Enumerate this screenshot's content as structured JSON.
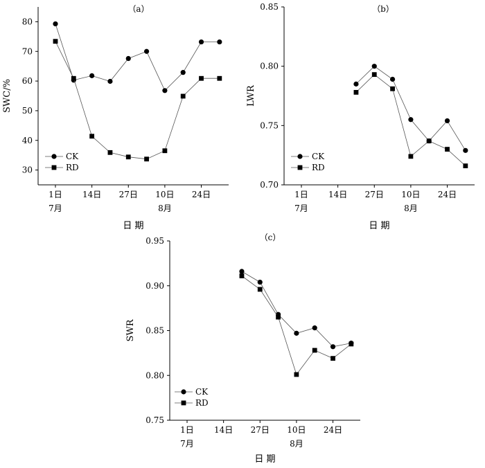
{
  "chart_data": [
    {
      "id": "a",
      "type": "line",
      "title": "（a）",
      "ylabel": "SWC/%",
      "xlabel": "日 期",
      "ylim": [
        25,
        85
      ],
      "yticks": [
        "30",
        "40",
        "50",
        "60",
        "70",
        "80"
      ],
      "yticks_values": [
        30,
        40,
        50,
        60,
        70,
        80
      ],
      "xlim": [
        0,
        9.5
      ],
      "xticks": [
        {
          "x": 0,
          "label": "1日",
          "sub": "7月"
        },
        {
          "x": 2,
          "label": "14日",
          "sub": ""
        },
        {
          "x": 4,
          "label": "27日",
          "sub": ""
        },
        {
          "x": 6,
          "label": "10日",
          "sub": "8月"
        },
        {
          "x": 8,
          "label": "24日",
          "sub": ""
        }
      ],
      "legend": "bottom-left",
      "series": [
        {
          "name": "CK",
          "marker": "circle",
          "x": [
            0,
            1,
            2,
            3,
            4,
            5,
            6,
            7,
            8,
            9
          ],
          "y": [
            79.3,
            60.3,
            61.8,
            59.9,
            67.6,
            70.0,
            56.8,
            62.9,
            73.2,
            73.2
          ]
        },
        {
          "name": "RD",
          "marker": "square",
          "x": [
            0,
            1,
            2,
            3,
            4,
            5,
            6,
            7,
            8,
            9
          ],
          "y": [
            73.4,
            60.9,
            41.4,
            35.9,
            34.4,
            33.7,
            36.5,
            54.9,
            60.9,
            60.9
          ]
        }
      ]
    },
    {
      "id": "b",
      "type": "line",
      "title": "（b）",
      "ylabel": "LWR",
      "xlabel": "日 期",
      "ylim": [
        0.7,
        0.85
      ],
      "yticks": [
        "0.70",
        "0.75",
        "0.80",
        "0.85"
      ],
      "yticks_values": [
        0.7,
        0.75,
        0.8,
        0.85
      ],
      "xlim": [
        0,
        9.5
      ],
      "xticks": [
        {
          "x": 0,
          "label": "1日",
          "sub": "7月"
        },
        {
          "x": 2,
          "label": "14日",
          "sub": ""
        },
        {
          "x": 4,
          "label": "27日",
          "sub": ""
        },
        {
          "x": 6,
          "label": "10日",
          "sub": "8月"
        },
        {
          "x": 8,
          "label": "24日",
          "sub": ""
        }
      ],
      "legend": "bottom-left",
      "series": [
        {
          "name": "CK",
          "marker": "circle",
          "x": [
            3,
            4,
            5,
            6,
            7,
            8,
            9
          ],
          "y": [
            0.785,
            0.8,
            0.789,
            0.755,
            0.737,
            0.754,
            0.729
          ]
        },
        {
          "name": "RD",
          "marker": "square",
          "x": [
            3,
            4,
            5,
            6,
            7,
            8,
            9
          ],
          "y": [
            0.778,
            0.793,
            0.781,
            0.724,
            0.737,
            0.73,
            0.716
          ]
        }
      ]
    },
    {
      "id": "c",
      "type": "line",
      "title": "（c）",
      "ylabel": "SWR",
      "xlabel": "日 期",
      "ylim": [
        0.75,
        0.95
      ],
      "yticks": [
        "0.75",
        "0.80",
        "0.85",
        "0.90",
        "0.95"
      ],
      "yticks_values": [
        0.75,
        0.8,
        0.85,
        0.9,
        0.95
      ],
      "xlim": [
        0,
        9.5
      ],
      "xticks": [
        {
          "x": 0,
          "label": "1日",
          "sub": "7月"
        },
        {
          "x": 2,
          "label": "14日",
          "sub": ""
        },
        {
          "x": 4,
          "label": "27日",
          "sub": ""
        },
        {
          "x": 6,
          "label": "10日",
          "sub": "8月"
        },
        {
          "x": 8,
          "label": "24日",
          "sub": ""
        }
      ],
      "legend": "bottom-left",
      "series": [
        {
          "name": "CK",
          "marker": "circle",
          "x": [
            3,
            4,
            5,
            6,
            7,
            8,
            9
          ],
          "y": [
            0.916,
            0.904,
            0.868,
            0.847,
            0.853,
            0.832,
            0.836
          ]
        },
        {
          "name": "RD",
          "marker": "square",
          "x": [
            3,
            4,
            5,
            6,
            7,
            8,
            9
          ],
          "y": [
            0.911,
            0.896,
            0.865,
            0.801,
            0.828,
            0.819,
            0.835
          ]
        }
      ]
    }
  ]
}
